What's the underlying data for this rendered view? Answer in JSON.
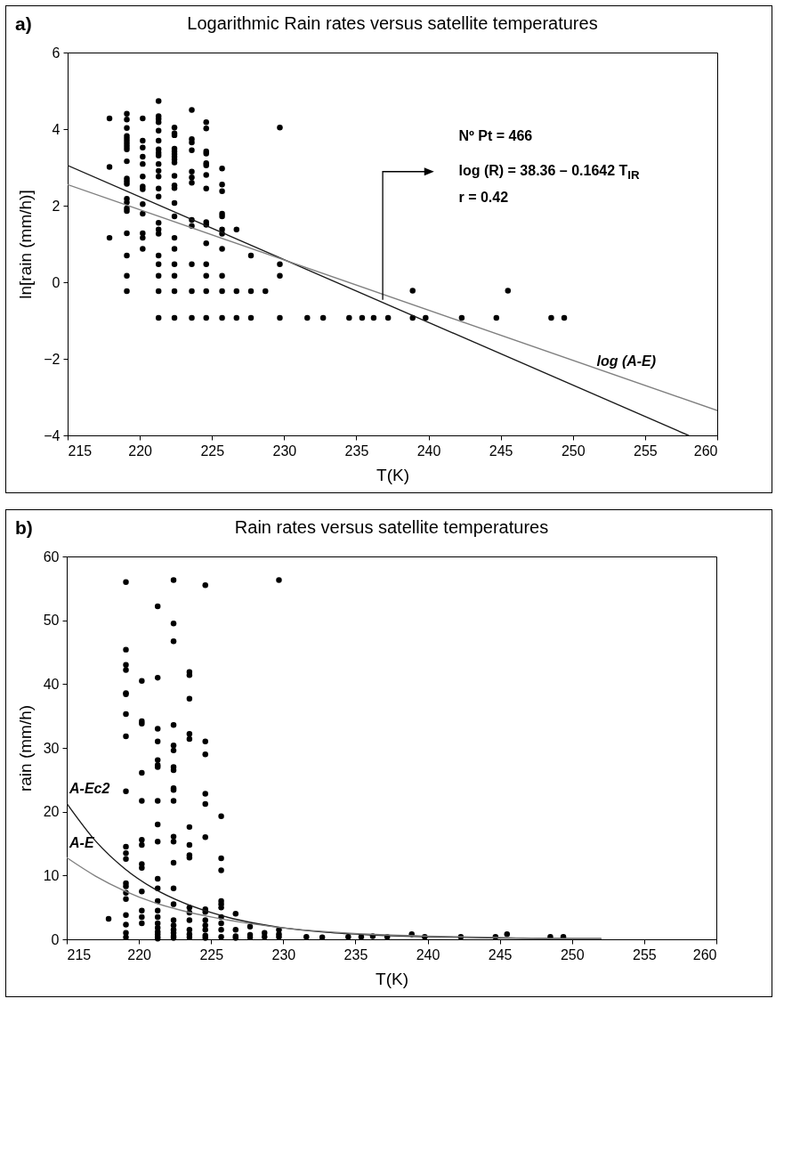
{
  "chart_data": [
    {
      "type": "scatter",
      "title": "Logarithmic Rain rates versus satellite temperatures",
      "xlabel": "T(K)",
      "ylabel": "ln[rain (mm/h)]",
      "xlim": [
        215,
        260
      ],
      "ylim": [
        -4,
        6
      ],
      "xticks": [
        215,
        220,
        225,
        230,
        235,
        240,
        245,
        250,
        255,
        260
      ],
      "yticks": [
        -4,
        -2,
        0,
        2,
        4,
        6
      ],
      "annotations": [
        "a)",
        "Nº Pt = 466",
        "log (R) = 38.36 – 0.1642 T$_{IR}$",
        "r = 0.42"
      ],
      "series": [
        {
          "type": "scatter",
          "marker": "circle",
          "color": "#000000",
          "x": [
            217.9,
            217.9,
            217.9,
            219.1,
            219.1,
            219.1,
            219.1,
            219.1,
            219.1,
            219.1,
            219.1,
            219.1,
            219.1,
            219.1,
            219.1,
            219.1,
            219.1,
            219.1,
            219.1,
            219.1,
            219.1,
            219.1,
            219.1,
            219.1,
            220.2,
            220.2,
            220.2,
            220.2,
            220.2,
            220.2,
            220.2,
            220.2,
            220.2,
            220.2,
            220.2,
            220.2,
            220.2,
            221.3,
            221.3,
            221.3,
            221.3,
            221.3,
            221.3,
            221.3,
            221.3,
            221.3,
            221.3,
            221.3,
            221.3,
            221.3,
            221.3,
            221.3,
            221.3,
            221.3,
            221.3,
            221.3,
            221.3,
            221.3,
            221.3,
            222.4,
            222.4,
            222.4,
            222.4,
            222.4,
            222.4,
            222.4,
            222.4,
            222.4,
            222.4,
            222.4,
            222.4,
            222.4,
            222.4,
            222.4,
            222.4,
            222.4,
            222.4,
            222.4,
            222.4,
            223.6,
            223.6,
            223.6,
            223.6,
            223.6,
            223.6,
            223.6,
            223.6,
            223.6,
            223.6,
            223.6,
            223.6,
            224.6,
            224.6,
            224.6,
            224.6,
            224.6,
            224.6,
            224.6,
            224.6,
            224.6,
            224.6,
            224.6,
            224.6,
            224.6,
            224.6,
            224.6,
            225.7,
            225.7,
            225.7,
            225.7,
            225.7,
            225.7,
            225.7,
            225.7,
            225.7,
            225.7,
            225.7,
            226.7,
            226.7,
            226.7,
            227.7,
            227.7,
            227.7,
            228.7,
            229.7,
            229.7,
            229.7,
            229.7,
            231.6,
            232.7,
            234.5,
            235.4,
            236.2,
            237.2,
            238.9,
            238.9,
            239.8,
            242.3,
            244.7,
            245.5,
            248.5,
            249.4
          ],
          "values": [
            4.28,
            3.01,
            1.16,
            4.4,
            4.25,
            4.03,
            3.82,
            3.75,
            3.68,
            3.61,
            3.54,
            3.47,
            3.16,
            2.71,
            2.64,
            2.57,
            2.18,
            2.09,
            1.93,
            1.86,
            1.28,
            0.7,
            0.17,
            -0.23,
            4.28,
            3.7,
            3.52,
            3.28,
            3.09,
            2.76,
            2.5,
            2.43,
            2.04,
            1.79,
            1.28,
            1.16,
            0.87,
            4.73,
            4.34,
            4.27,
            4.18,
            3.96,
            3.7,
            3.47,
            3.38,
            3.31,
            3.09,
            2.91,
            2.76,
            2.45,
            2.24,
            1.55,
            1.38,
            1.27,
            0.7,
            0.47,
            0.17,
            -0.23,
            -0.93,
            4.04,
            3.89,
            3.84,
            3.49,
            3.42,
            3.35,
            3.28,
            3.21,
            3.13,
            2.78,
            2.53,
            2.46,
            2.07,
            1.72,
            1.16,
            0.87,
            0.47,
            0.17,
            -0.23,
            -0.93,
            4.5,
            3.74,
            3.65,
            3.45,
            2.89,
            2.74,
            2.6,
            1.63,
            1.47,
            0.47,
            -0.23,
            -0.93,
            4.18,
            4.02,
            3.42,
            3.36,
            3.11,
            3.05,
            2.8,
            2.45,
            1.57,
            1.5,
            1.02,
            0.47,
            0.17,
            -0.23,
            -0.93,
            2.97,
            2.55,
            2.38,
            1.79,
            1.72,
            1.38,
            1.27,
            0.87,
            0.17,
            -0.23,
            -0.93,
            1.38,
            -0.23,
            -0.93,
            0.7,
            -0.23,
            -0.93,
            -0.23,
            4.04,
            0.47,
            0.17,
            -0.93,
            -0.93,
            -0.93,
            -0.93,
            -0.93,
            -0.93,
            -0.93,
            -0.93,
            -0.22,
            -0.93,
            -0.93,
            -0.93,
            -0.22,
            -0.93,
            -0.93
          ]
        },
        {
          "type": "line",
          "color": "#1a1a1a",
          "x": [
            215,
            258
          ],
          "values": [
            3.05,
            -4
          ]
        },
        {
          "type": "line",
          "name": "log (A-E)",
          "color": "#808080",
          "x": [
            215,
            260
          ],
          "values": [
            2.55,
            -3.35
          ]
        }
      ]
    },
    {
      "type": "scatter",
      "title": "Rain rates versus satellite temperatures",
      "xlabel": "T(K)",
      "ylabel": "rain (mm/h)",
      "xlim": [
        215,
        260
      ],
      "ylim": [
        0,
        60
      ],
      "xticks": [
        215,
        220,
        225,
        230,
        235,
        240,
        245,
        250,
        255,
        260
      ],
      "yticks": [
        0,
        10,
        20,
        30,
        40,
        50,
        60
      ],
      "annotations": [
        "b)"
      ],
      "series": [
        {
          "type": "scatter",
          "marker": "circle",
          "color": "#000000",
          "x": [
            217.9,
            219.1,
            219.1,
            219.1,
            219.1,
            219.1,
            219.1,
            219.1,
            219.1,
            219.1,
            219.1,
            219.1,
            219.1,
            219.1,
            219.1,
            219.1,
            219.1,
            219.1,
            219.1,
            219.1,
            219.1,
            220.2,
            220.2,
            220.2,
            220.2,
            220.2,
            220.2,
            220.2,
            220.2,
            220.2,
            220.2,
            220.2,
            220.2,
            220.2,
            221.3,
            221.3,
            221.3,
            221.3,
            221.3,
            221.3,
            221.3,
            221.3,
            221.3,
            221.3,
            221.3,
            221.3,
            221.3,
            221.3,
            221.3,
            221.3,
            221.3,
            221.3,
            221.3,
            221.3,
            221.3,
            222.4,
            222.4,
            222.4,
            222.4,
            222.4,
            222.4,
            222.4,
            222.4,
            222.4,
            222.4,
            222.4,
            222.4,
            222.4,
            222.4,
            222.4,
            222.4,
            222.4,
            222.4,
            222.4,
            222.4,
            222.4,
            222.4,
            223.5,
            223.5,
            223.5,
            223.5,
            223.5,
            223.5,
            223.5,
            223.5,
            223.5,
            223.5,
            223.5,
            223.5,
            223.5,
            223.5,
            223.5,
            224.6,
            224.6,
            224.6,
            224.6,
            224.6,
            224.6,
            224.6,
            224.6,
            224.6,
            224.6,
            224.6,
            224.6,
            224.6,
            225.7,
            225.7,
            225.7,
            225.7,
            225.7,
            225.7,
            225.7,
            225.7,
            225.7,
            225.7,
            226.7,
            226.7,
            226.7,
            226.7,
            227.7,
            227.7,
            227.7,
            228.7,
            228.7,
            229.7,
            229.7,
            229.7,
            229.7,
            231.6,
            232.7,
            234.5,
            235.4,
            236.2,
            237.2,
            238.9,
            239.8,
            242.3,
            244.7,
            245.5,
            248.5,
            249.4
          ],
          "values": [
            3.2,
            56.0,
            45.4,
            43.0,
            42.2,
            38.6,
            38.4,
            35.3,
            31.8,
            23.2,
            14.5,
            13.5,
            12.6,
            8.8,
            8.3,
            7.3,
            6.3,
            3.8,
            2.3,
            1.0,
            0.3,
            40.5,
            34.2,
            33.8,
            26.1,
            21.7,
            15.6,
            14.8,
            11.8,
            11.2,
            7.5,
            4.5,
            3.5,
            2.5,
            52.2,
            41.0,
            33.0,
            31.0,
            28.1,
            27.3,
            27.0,
            21.7,
            18.0,
            15.3,
            9.5,
            8.0,
            6.0,
            4.5,
            3.5,
            2.5,
            1.8,
            1.2,
            0.8,
            0.4,
            0.1,
            56.3,
            49.5,
            46.7,
            33.6,
            30.4,
            29.6,
            27.0,
            26.5,
            23.7,
            23.4,
            21.7,
            16.1,
            15.3,
            12.0,
            8.0,
            5.5,
            3.0,
            2.2,
            1.5,
            1.0,
            0.5,
            0.2,
            41.9,
            41.4,
            37.7,
            32.2,
            31.4,
            17.6,
            14.8,
            13.2,
            12.8,
            5.0,
            4.2,
            3.0,
            1.5,
            0.8,
            0.3,
            55.5,
            31.0,
            29.0,
            22.8,
            21.2,
            16.0,
            4.7,
            4.3,
            3.0,
            2.2,
            1.5,
            0.6,
            0.2,
            19.3,
            12.7,
            10.8,
            6.0,
            5.5,
            5.0,
            3.5,
            2.5,
            1.5,
            0.4,
            4.0,
            1.5,
            0.5,
            0.2,
            2.0,
            0.7,
            0.3,
            1.0,
            0.4,
            56.3,
            1.5,
            0.8,
            0.4,
            0.4,
            0.3,
            0.4,
            0.4,
            0.5,
            0.4,
            0.8,
            0.4,
            0.4,
            0.4,
            0.8,
            0.4,
            0.4
          ]
        },
        {
          "type": "line",
          "name": "A-Ec2",
          "color": "#1a1a1a",
          "x": [
            215,
            217,
            219,
            221,
            223,
            225,
            227,
            230,
            233,
            236,
            240,
            245,
            250,
            252
          ],
          "values": [
            21.3,
            15.4,
            11.1,
            8.0,
            5.8,
            4.2,
            3.0,
            1.8,
            1.1,
            0.7,
            0.4,
            0.2,
            0.1,
            0.1
          ]
        },
        {
          "type": "line",
          "name": "A-E",
          "color": "#808080",
          "x": [
            215,
            217,
            219,
            221,
            223,
            225,
            227,
            230,
            233,
            236,
            240,
            245,
            250,
            252
          ],
          "values": [
            12.8,
            9.9,
            7.6,
            5.8,
            4.5,
            3.5,
            2.7,
            1.8,
            1.2,
            0.8,
            0.5,
            0.3,
            0.1,
            0.1
          ]
        }
      ]
    }
  ]
}
